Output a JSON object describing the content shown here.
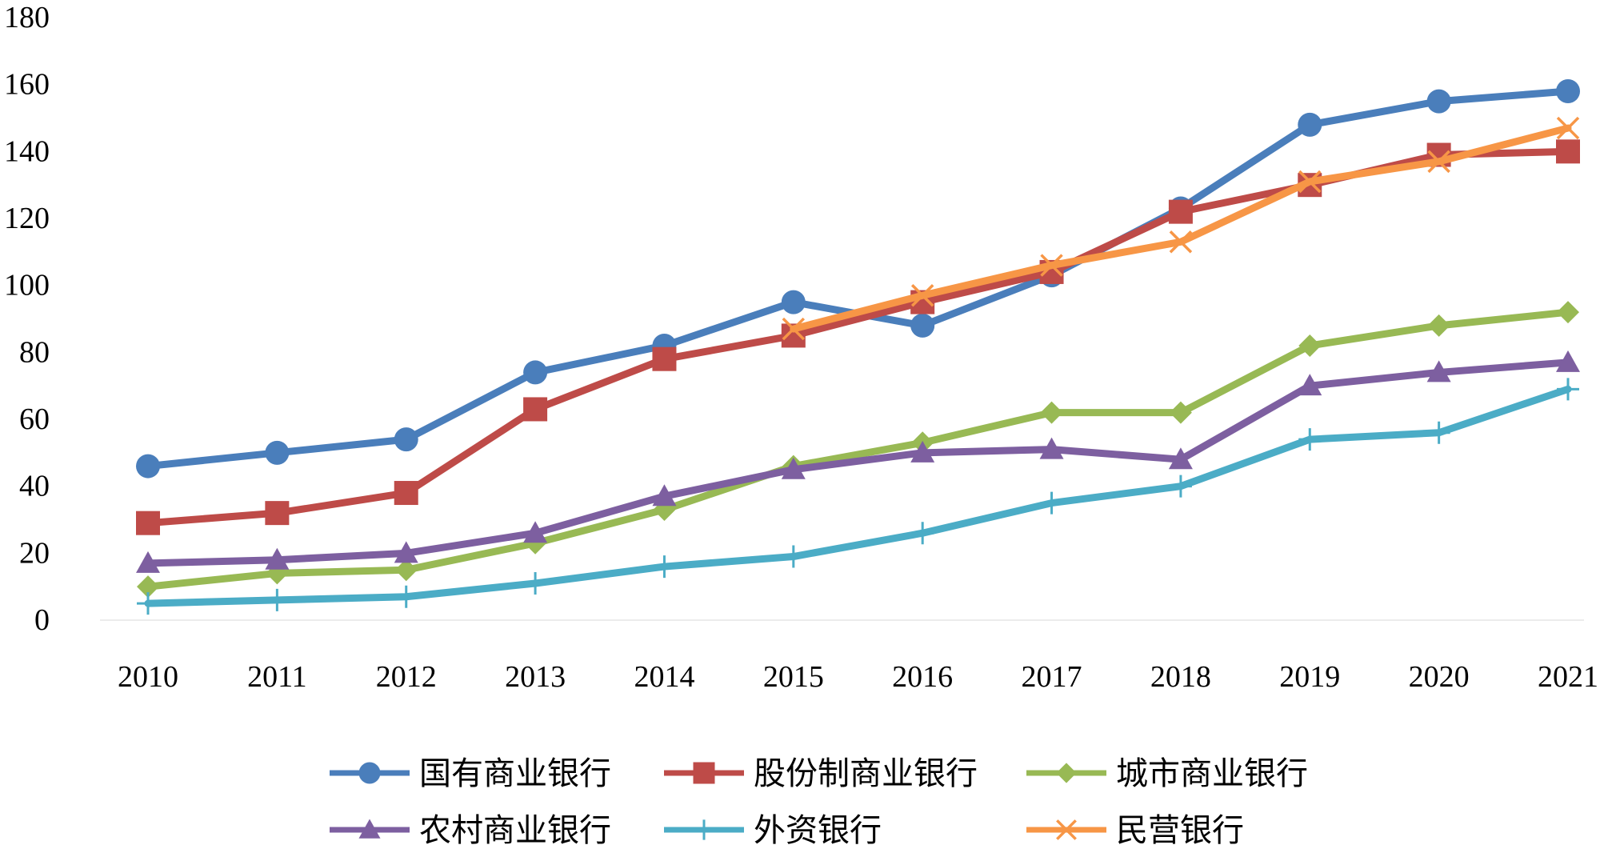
{
  "chart_data": {
    "type": "line",
    "title": "",
    "xlabel": "",
    "ylabel": "",
    "ylim": [
      0,
      180
    ],
    "yticks": [
      0,
      20,
      40,
      60,
      80,
      100,
      120,
      140,
      160,
      180
    ],
    "categories": [
      "2010",
      "2011",
      "2012",
      "2013",
      "2014",
      "2015",
      "2016",
      "2017",
      "2018",
      "2019",
      "2020",
      "2021"
    ],
    "grid": false,
    "legend_position": "bottom",
    "series": [
      {
        "name": "国有商业银行",
        "color": "#4a7ebb",
        "marker": "circle",
        "values": [
          46,
          50,
          54,
          74,
          82,
          95,
          88,
          103,
          123,
          148,
          155,
          158
        ]
      },
      {
        "name": "股份制商业银行",
        "color": "#be4b48",
        "marker": "square",
        "values": [
          29,
          32,
          38,
          63,
          78,
          85,
          95,
          104,
          122,
          130,
          139,
          140
        ]
      },
      {
        "name": "城市商业银行",
        "color": "#98b954",
        "marker": "diamond",
        "values": [
          10,
          14,
          15,
          23,
          33,
          46,
          53,
          62,
          62,
          82,
          88,
          92
        ]
      },
      {
        "name": "农村商业银行",
        "color": "#7d5fa0",
        "marker": "triangle",
        "values": [
          17,
          18,
          20,
          26,
          37,
          45,
          50,
          51,
          48,
          70,
          74,
          77
        ]
      },
      {
        "name": "外资银行",
        "color": "#4bacc6",
        "marker": "plus",
        "values": [
          5,
          6,
          7,
          11,
          16,
          19,
          26,
          35,
          40,
          54,
          56,
          69
        ]
      },
      {
        "name": "民营银行",
        "color": "#f79646",
        "marker": "x",
        "values": [
          null,
          null,
          null,
          null,
          null,
          87,
          97,
          106,
          113,
          131,
          137,
          147
        ]
      }
    ]
  }
}
